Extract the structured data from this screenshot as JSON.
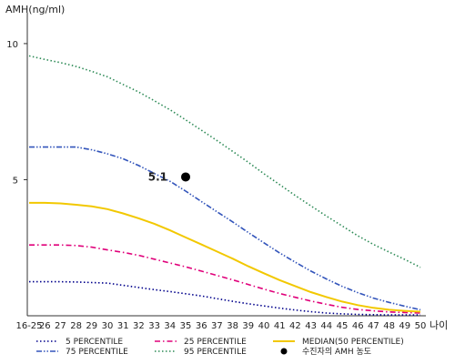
{
  "chart_data": {
    "type": "line",
    "ylabel": "AMH(ng/ml)",
    "xlabel": "나이",
    "x_tick_labels": [
      "16-25",
      "26",
      "27",
      "28",
      "29",
      "30",
      "31",
      "32",
      "33",
      "34",
      "35",
      "36",
      "37",
      "38",
      "39",
      "40",
      "41",
      "42",
      "43",
      "44",
      "45",
      "46",
      "47",
      "48",
      "49",
      "50"
    ],
    "y_ticks": [
      5,
      10
    ],
    "ylim": [
      0,
      11
    ],
    "grid": false,
    "legend_position": "bottom",
    "series": [
      {
        "name": "5 PERCENTILE",
        "color": "#00008b",
        "dash": "dot",
        "values": [
          1.25,
          1.25,
          1.25,
          1.24,
          1.22,
          1.2,
          1.12,
          1.04,
          0.96,
          0.89,
          0.81,
          0.73,
          0.63,
          0.53,
          0.44,
          0.36,
          0.28,
          0.21,
          0.15,
          0.1,
          0.07,
          0.05,
          0.04,
          0.03,
          0.03,
          0.03
        ]
      },
      {
        "name": "25 PERCENTILE",
        "color": "#e0007a",
        "dash": "dashdot",
        "values": [
          2.6,
          2.6,
          2.6,
          2.58,
          2.52,
          2.42,
          2.33,
          2.22,
          2.08,
          1.94,
          1.8,
          1.64,
          1.48,
          1.32,
          1.15,
          0.98,
          0.82,
          0.68,
          0.54,
          0.42,
          0.31,
          0.23,
          0.18,
          0.14,
          0.12,
          0.1
        ]
      },
      {
        "name": "MEDIAN(50 PERCENTILE)",
        "color": "#f2c800",
        "dash": "solid",
        "values": [
          4.15,
          4.15,
          4.13,
          4.08,
          4.02,
          3.92,
          3.76,
          3.58,
          3.38,
          3.14,
          2.88,
          2.62,
          2.36,
          2.1,
          1.82,
          1.56,
          1.31,
          1.09,
          0.87,
          0.69,
          0.52,
          0.39,
          0.29,
          0.22,
          0.18,
          0.15
        ]
      },
      {
        "name": "75 PERCENTILE",
        "color": "#3355bb",
        "dash": "dashdotdot",
        "values": [
          6.2,
          6.2,
          6.2,
          6.2,
          6.1,
          5.95,
          5.77,
          5.52,
          5.23,
          4.94,
          4.58,
          4.2,
          3.82,
          3.45,
          3.06,
          2.68,
          2.31,
          1.97,
          1.64,
          1.35,
          1.08,
          0.85,
          0.65,
          0.49,
          0.35,
          0.22
        ]
      },
      {
        "name": "95 PERCENTILE",
        "color": "#2e8b57",
        "dash": "dot",
        "values": [
          9.55,
          9.42,
          9.3,
          9.16,
          8.98,
          8.78,
          8.5,
          8.22,
          7.9,
          7.57,
          7.2,
          6.82,
          6.44,
          6.04,
          5.64,
          5.22,
          4.82,
          4.42,
          4.04,
          3.66,
          3.3,
          2.94,
          2.62,
          2.34,
          2.07,
          1.78
        ]
      }
    ],
    "marker": {
      "legend_name": "수진자의 AMH 농도",
      "x_label": "35",
      "y": 5.1,
      "label": "5.1",
      "color": "#000000"
    }
  }
}
